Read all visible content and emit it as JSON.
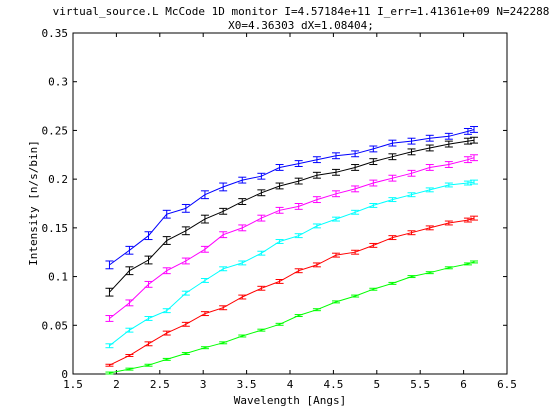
{
  "chart_data": {
    "type": "line",
    "title": "virtual_source.L McCode 1D monitor I=4.57184e+11 I_err=1.41361e+09 N=242288",
    "subtitle": "X0=4.36303 dX=1.08404;",
    "xlabel": "Wavelength [Angs]",
    "ylabel": "Intensity [n/s/bin]",
    "xlim": [
      1.5,
      6.5
    ],
    "ylim": [
      0,
      0.35
    ],
    "xticks": [
      1.5,
      2,
      2.5,
      3,
      3.5,
      4,
      4.5,
      5,
      5.5,
      6,
      6.5
    ],
    "xtick_labels": [
      "1.5",
      "2",
      "2.5",
      "3",
      "3.5",
      "4",
      "4.5",
      "5",
      "5.5",
      "6",
      "6.5"
    ],
    "yticks": [
      0,
      0.05,
      0.1,
      0.15,
      0.2,
      0.25,
      0.3,
      0.35
    ],
    "ytick_labels": [
      "0",
      "0.05",
      "0.1",
      "0.15",
      "0.2",
      "0.25",
      "0.3",
      "0.35"
    ],
    "grid": false,
    "error_bars": true,
    "x": [
      1.92,
      2.15,
      2.37,
      2.58,
      2.8,
      3.02,
      3.23,
      3.45,
      3.67,
      3.88,
      4.1,
      4.31,
      4.53,
      4.75,
      4.96,
      5.18,
      5.4,
      5.61,
      5.83,
      6.05,
      6.12
    ],
    "series": [
      {
        "color": "#0000ff",
        "values": [
          0.112,
          0.127,
          0.142,
          0.164,
          0.17,
          0.184,
          0.192,
          0.199,
          0.203,
          0.212,
          0.216,
          0.22,
          0.224,
          0.226,
          0.231,
          0.237,
          0.239,
          0.242,
          0.244,
          0.249,
          0.251
        ],
        "errors": [
          0.004,
          0.004,
          0.004,
          0.004,
          0.004,
          0.004,
          0.004,
          0.003,
          0.003,
          0.003,
          0.003,
          0.003,
          0.003,
          0.003,
          0.003,
          0.003,
          0.003,
          0.003,
          0.003,
          0.003,
          0.003
        ]
      },
      {
        "color": "#000000",
        "values": [
          0.084,
          0.106,
          0.117,
          0.137,
          0.147,
          0.159,
          0.167,
          0.177,
          0.186,
          0.193,
          0.198,
          0.204,
          0.207,
          0.212,
          0.218,
          0.223,
          0.228,
          0.232,
          0.236,
          0.239,
          0.24
        ],
        "errors": [
          0.004,
          0.004,
          0.004,
          0.004,
          0.004,
          0.004,
          0.003,
          0.003,
          0.003,
          0.003,
          0.003,
          0.003,
          0.003,
          0.003,
          0.003,
          0.003,
          0.003,
          0.003,
          0.003,
          0.003,
          0.003
        ]
      },
      {
        "color": "#ff00ff",
        "values": [
          0.057,
          0.073,
          0.092,
          0.106,
          0.116,
          0.128,
          0.143,
          0.15,
          0.16,
          0.168,
          0.172,
          0.179,
          0.185,
          0.19,
          0.196,
          0.201,
          0.206,
          0.212,
          0.215,
          0.22,
          0.222
        ],
        "errors": [
          0.003,
          0.003,
          0.003,
          0.003,
          0.003,
          0.003,
          0.003,
          0.003,
          0.003,
          0.003,
          0.003,
          0.003,
          0.003,
          0.003,
          0.003,
          0.003,
          0.003,
          0.003,
          0.003,
          0.003,
          0.003
        ]
      },
      {
        "color": "#00ffff",
        "values": [
          0.029,
          0.045,
          0.057,
          0.065,
          0.083,
          0.096,
          0.108,
          0.114,
          0.124,
          0.136,
          0.142,
          0.152,
          0.159,
          0.166,
          0.173,
          0.179,
          0.184,
          0.189,
          0.194,
          0.196,
          0.197
        ],
        "errors": [
          0.002,
          0.002,
          0.002,
          0.002,
          0.002,
          0.002,
          0.002,
          0.002,
          0.002,
          0.002,
          0.002,
          0.002,
          0.002,
          0.002,
          0.002,
          0.002,
          0.002,
          0.002,
          0.002,
          0.002,
          0.002
        ]
      },
      {
        "color": "#ff0000",
        "values": [
          0.009,
          0.019,
          0.031,
          0.042,
          0.051,
          0.062,
          0.068,
          0.079,
          0.088,
          0.095,
          0.106,
          0.112,
          0.122,
          0.125,
          0.132,
          0.14,
          0.145,
          0.15,
          0.155,
          0.158,
          0.16
        ],
        "errors": [
          0.001,
          0.001,
          0.002,
          0.002,
          0.002,
          0.002,
          0.002,
          0.002,
          0.002,
          0.002,
          0.002,
          0.002,
          0.002,
          0.002,
          0.002,
          0.002,
          0.002,
          0.002,
          0.002,
          0.002,
          0.002
        ]
      },
      {
        "color": "#00ff00",
        "values": [
          0.001,
          0.005,
          0.009,
          0.015,
          0.021,
          0.027,
          0.032,
          0.039,
          0.045,
          0.051,
          0.06,
          0.066,
          0.074,
          0.08,
          0.087,
          0.093,
          0.1,
          0.104,
          0.109,
          0.113,
          0.115
        ],
        "errors": [
          0.001,
          0.001,
          0.001,
          0.001,
          0.001,
          0.001,
          0.001,
          0.001,
          0.001,
          0.001,
          0.001,
          0.001,
          0.001,
          0.001,
          0.001,
          0.001,
          0.001,
          0.001,
          0.001,
          0.001,
          0.001
        ]
      }
    ]
  }
}
